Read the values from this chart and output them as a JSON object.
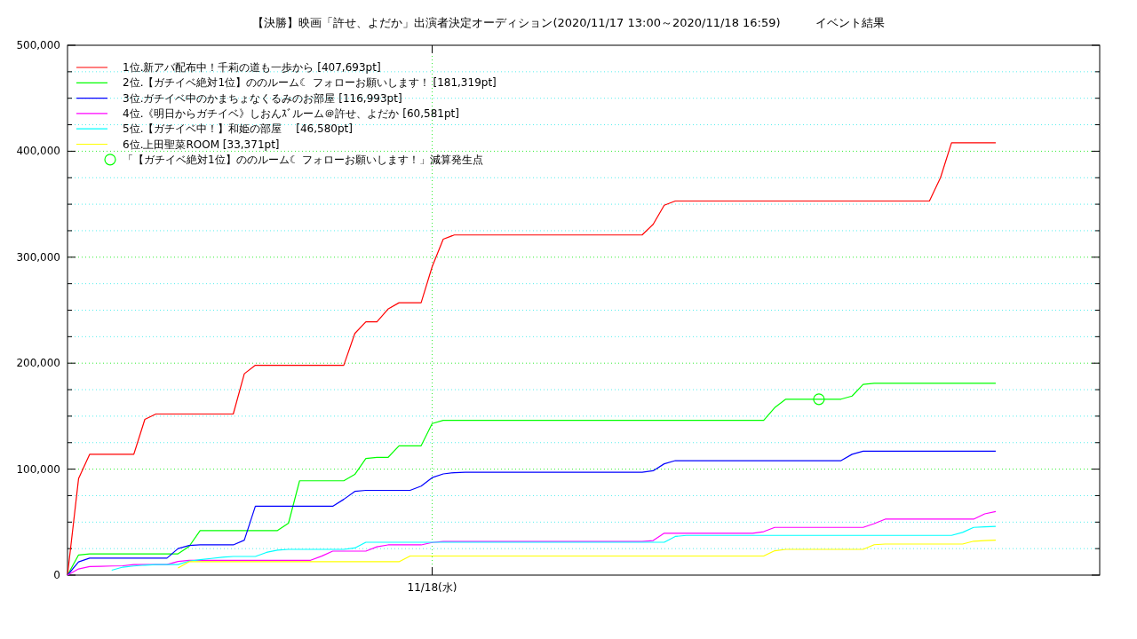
{
  "chart_data": {
    "type": "line",
    "title": "【決勝】映画「許せ、よだか」出演者決定オーディション(2020/11/17 13:00～2020/11/18 16:59)　　　イベント結果",
    "categories": [
      null,
      null,
      null,
      null,
      null,
      null,
      null,
      null,
      null,
      null,
      null,
      null,
      null,
      null,
      null,
      null,
      null,
      null,
      null,
      null,
      null,
      null,
      null,
      null,
      null,
      null,
      null,
      null,
      null,
      null,
      null,
      null,
      null,
      "11/18(水)",
      null,
      null,
      null,
      null,
      null,
      null,
      null,
      null,
      null,
      null,
      null,
      null,
      null,
      null,
      null,
      null,
      null,
      null,
      null,
      null,
      null,
      null,
      null,
      null,
      null,
      null,
      null,
      null,
      null,
      null,
      null,
      null,
      null,
      null,
      null,
      null,
      null,
      null,
      null,
      null,
      null,
      null,
      null,
      null,
      null,
      null,
      null,
      null,
      null,
      null,
      null
    ],
    "ylim": [
      0,
      500000
    ],
    "yticks": [
      0,
      {
        "value": 25000,
        "label": null
      },
      {
        "value": 50000,
        "label": null
      },
      {
        "value": 75000,
        "label": null
      },
      {
        "value": 100000,
        "label": "100,000"
      },
      {
        "value": 125000,
        "label": null
      },
      {
        "value": 150000,
        "label": null
      },
      {
        "value": 175000,
        "label": null
      },
      {
        "value": 200000,
        "label": "200,000"
      },
      {
        "value": 225000,
        "label": null
      },
      {
        "value": 250000,
        "label": null
      },
      {
        "value": 275000,
        "label": null
      },
      {
        "value": 300000,
        "label": "300,000"
      },
      {
        "value": 325000,
        "label": null
      },
      {
        "value": 350000,
        "label": null
      },
      {
        "value": 375000,
        "label": null
      },
      {
        "value": 400000,
        "label": "400,000"
      },
      {
        "value": 425000,
        "label": null
      },
      {
        "value": 450000,
        "label": null
      },
      {
        "value": 475000,
        "label": null
      },
      {
        "value": 500000,
        "label": "500,000"
      }
    ],
    "grid": true,
    "legend": "top left",
    "line_style": "solid",
    "series": [
      {
        "name": "1位.新アバ配布中！千莉の道も一歩から [407,693pt]",
        "color": "#ff0000",
        "values": [
          0,
          91000,
          114000,
          114000,
          114000,
          114000,
          114000,
          147000,
          152000,
          152000,
          152000,
          152000,
          152000,
          152000,
          152000,
          152000,
          190000,
          198000,
          198000,
          198000,
          198000,
          198000,
          198000,
          198000,
          198000,
          198000,
          228000,
          239000,
          239000,
          251000,
          257000,
          257000,
          257000,
          291000,
          317000,
          321000,
          321000,
          321000,
          321000,
          321000,
          321000,
          321000,
          321000,
          321000,
          321000,
          321000,
          321000,
          321000,
          321000,
          321000,
          321000,
          321000,
          321000,
          331000,
          349000,
          353000,
          353000,
          353000,
          353000,
          353000,
          353000,
          353000,
          353000,
          353000,
          353000,
          353000,
          353000,
          353000,
          353000,
          353000,
          353000,
          353000,
          353000,
          353000,
          353000,
          353000,
          353000,
          353000,
          353000,
          375000,
          408000,
          408000,
          408000,
          408000,
          408000
        ]
      },
      {
        "name": "2位.【ガチイベ絶対1位】ののルーム☾ フォローお願いします！ [181,319pt]",
        "color": "#00ff00",
        "values": [
          0,
          19000,
          20000,
          20000,
          20000,
          20000,
          20000,
          20000,
          20000,
          20000,
          20000,
          27000,
          42000,
          42000,
          42000,
          42000,
          42000,
          42000,
          42000,
          42000,
          49000,
          89000,
          89000,
          89000,
          89000,
          89000,
          95000,
          110000,
          111000,
          111000,
          122000,
          122000,
          122000,
          143000,
          146000,
          146000,
          146000,
          146000,
          146000,
          146000,
          146000,
          146000,
          146000,
          146000,
          146000,
          146000,
          146000,
          146000,
          146000,
          146000,
          146000,
          146000,
          146000,
          146000,
          146000,
          146000,
          146000,
          146000,
          146000,
          146000,
          146000,
          146000,
          146000,
          146000,
          158000,
          166000,
          166000,
          166000,
          166000,
          166000,
          166000,
          169000,
          180000,
          181000,
          181000,
          181000,
          181000,
          181000,
          181000,
          181000,
          181000,
          181000,
          181000,
          181000,
          181000
        ]
      },
      {
        "name": "3位.ガチイベ中のかまちょなくるみのお部屋 [116,993pt]",
        "color": "#0000ff",
        "values": [
          0,
          12500,
          16000,
          16000,
          16000,
          16000,
          16000,
          16000,
          16000,
          16000,
          25000,
          28000,
          28500,
          28500,
          28500,
          28500,
          33000,
          65000,
          65000,
          65000,
          65000,
          65000,
          65000,
          65000,
          65000,
          71500,
          79000,
          80000,
          80000,
          80000,
          80000,
          80000,
          84000,
          92000,
          95500,
          96700,
          97000,
          97000,
          97000,
          97000,
          97000,
          97000,
          97000,
          97000,
          97000,
          97000,
          97000,
          97000,
          97000,
          97000,
          97000,
          97000,
          97000,
          98500,
          105000,
          108000,
          108000,
          108000,
          108000,
          108000,
          108000,
          108000,
          108000,
          108000,
          108000,
          108000,
          108000,
          108000,
          108000,
          108000,
          108000,
          114000,
          117000,
          117000,
          117000,
          117000,
          117000,
          117000,
          117000,
          117000,
          117000,
          117000,
          117000,
          117000,
          117000
        ]
      },
      {
        "name": "4位.《明日からガチイベ》しおんｽﾞルーム＠許せ、よだか [60,581pt]",
        "color": "#ff00ff",
        "values": [
          0,
          5800,
          8000,
          8300,
          8600,
          8800,
          10000,
          10000,
          10000,
          10000,
          12900,
          14000,
          14000,
          14000,
          14000,
          14000,
          14000,
          14000,
          14000,
          14000,
          14000,
          14000,
          14000,
          17900,
          22600,
          22600,
          22600,
          22600,
          26700,
          28500,
          28500,
          28500,
          28500,
          30800,
          31800,
          31800,
          31800,
          31800,
          31800,
          31800,
          31800,
          31800,
          31800,
          31800,
          31800,
          31800,
          31800,
          31800,
          31800,
          31800,
          31800,
          31800,
          31800,
          32600,
          39500,
          39500,
          39500,
          39500,
          39500,
          39500,
          39500,
          39500,
          39500,
          41000,
          45000,
          45000,
          45000,
          45000,
          45000,
          45000,
          45000,
          45000,
          45000,
          48600,
          52800,
          52800,
          52800,
          52800,
          52800,
          52800,
          52800,
          52800,
          52800,
          57800,
          60000
        ]
      },
      {
        "name": "5位.【ガチイベ中！】和姫の部屋　 [46,580pt]",
        "color": "#00ffff",
        "values": [
          null,
          null,
          null,
          null,
          4600,
          7500,
          8600,
          9400,
          9900,
          10000,
          10000,
          13200,
          14600,
          15700,
          16900,
          17600,
          17600,
          17600,
          21400,
          23500,
          24300,
          24300,
          24300,
          24300,
          24300,
          24300,
          25600,
          31000,
          31000,
          31000,
          31000,
          31000,
          31000,
          31000,
          31000,
          31000,
          31000,
          31000,
          31000,
          31000,
          31000,
          31000,
          31000,
          31000,
          31000,
          31000,
          31000,
          31000,
          31000,
          31000,
          31000,
          31000,
          31000,
          31000,
          31000,
          36500,
          37500,
          37500,
          37500,
          37500,
          37500,
          37500,
          37500,
          37500,
          37500,
          37500,
          37500,
          37500,
          37500,
          37500,
          37500,
          37500,
          37500,
          37500,
          37500,
          37500,
          37500,
          37500,
          37500,
          37500,
          37500,
          40300,
          45000,
          45600,
          46000
        ]
      },
      {
        "name": "6位.上田聖菜ROOM [33,371pt]",
        "color": "#ffff00",
        "values": [
          null,
          null,
          null,
          null,
          null,
          null,
          null,
          null,
          null,
          null,
          6700,
          12600,
          12600,
          12600,
          12600,
          12600,
          12600,
          12600,
          12600,
          12600,
          12600,
          12600,
          12600,
          12600,
          12600,
          12600,
          12600,
          12600,
          12600,
          12600,
          12600,
          18000,
          18000,
          18000,
          18000,
          18000,
          18000,
          18000,
          18000,
          18000,
          18000,
          18000,
          18000,
          18000,
          18000,
          18000,
          18000,
          18000,
          18000,
          18000,
          18000,
          18000,
          18000,
          18000,
          18000,
          18000,
          18000,
          18000,
          18000,
          18000,
          18000,
          18000,
          18000,
          18000,
          23000,
          24300,
          24300,
          24300,
          24300,
          24300,
          24300,
          24300,
          24300,
          28700,
          29300,
          29300,
          29300,
          29300,
          29300,
          29300,
          29300,
          29300,
          32000,
          32500,
          33000
        ]
      },
      {
        "name": "「【ガチイベ絶対1位】ののルーム☾ フォローお願いします！」減算発生点",
        "type": "scatter",
        "marker": "circle",
        "color": "#00ff00",
        "values": [
          null,
          null,
          null,
          null,
          null,
          null,
          null,
          null,
          null,
          null,
          null,
          null,
          null,
          null,
          null,
          null,
          null,
          null,
          null,
          null,
          null,
          null,
          null,
          null,
          null,
          null,
          null,
          null,
          null,
          null,
          null,
          null,
          null,
          null,
          null,
          null,
          null,
          null,
          null,
          null,
          null,
          null,
          null,
          null,
          null,
          null,
          null,
          null,
          null,
          null,
          null,
          null,
          null,
          null,
          null,
          null,
          null,
          null,
          null,
          null,
          null,
          null,
          null,
          null,
          null,
          null,
          null,
          null,
          166000,
          null,
          null,
          null,
          null,
          null,
          null,
          null,
          null,
          null,
          null,
          null,
          null,
          null,
          null,
          null,
          null
        ]
      }
    ]
  }
}
